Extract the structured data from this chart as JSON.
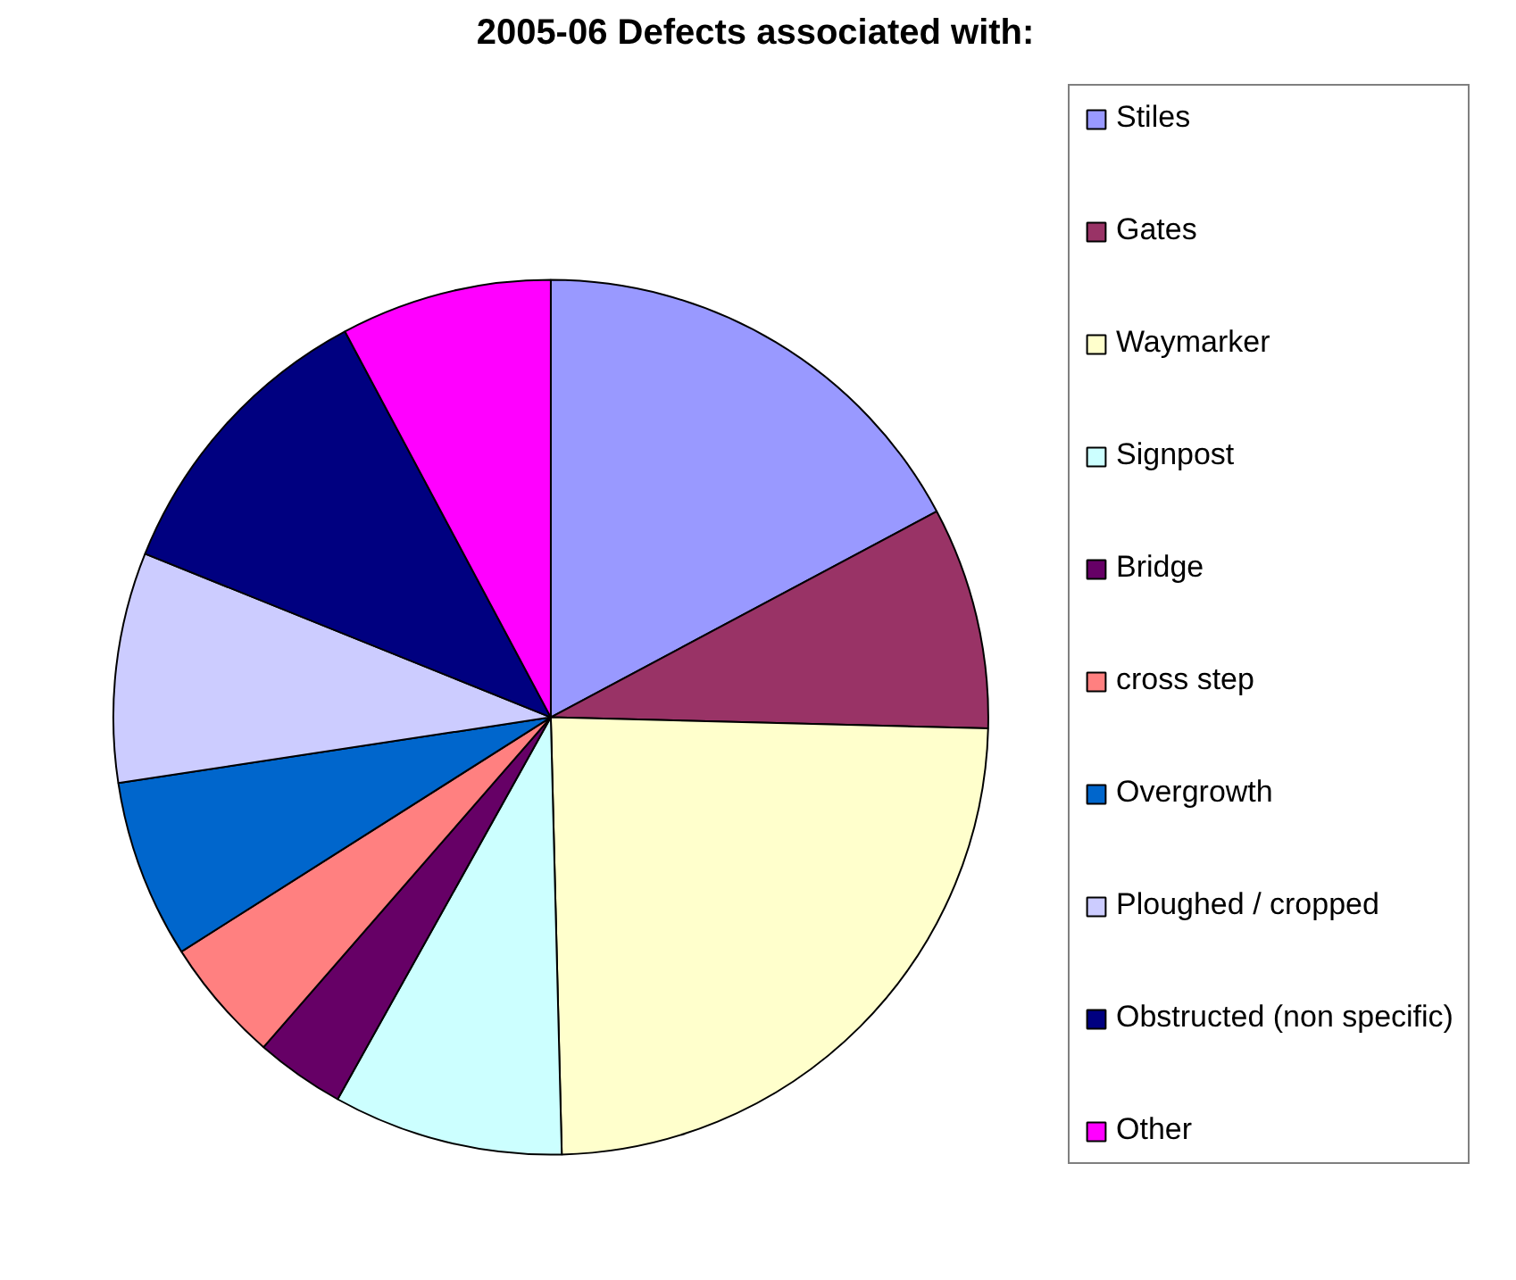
{
  "chart_data": {
    "type": "pie",
    "title": "2005-06 Defects associated with:",
    "categories": [
      "Stiles",
      "Gates",
      "Waymarker",
      "Signpost",
      "Bridge",
      "cross step",
      "Overgrowth",
      "Ploughed / cropped",
      "Obstructed (non specific)",
      "Other"
    ],
    "values": [
      17.2,
      8.2,
      24.2,
      8.5,
      3.3,
      4.6,
      6.6,
      8.5,
      11.1,
      7.8
    ],
    "colors": [
      "#9999ff",
      "#993366",
      "#ffffcc",
      "#ccffff",
      "#660066",
      "#ff8080",
      "#0066cc",
      "#ccccff",
      "#000080",
      "#ff00ff"
    ],
    "legend": "right"
  }
}
